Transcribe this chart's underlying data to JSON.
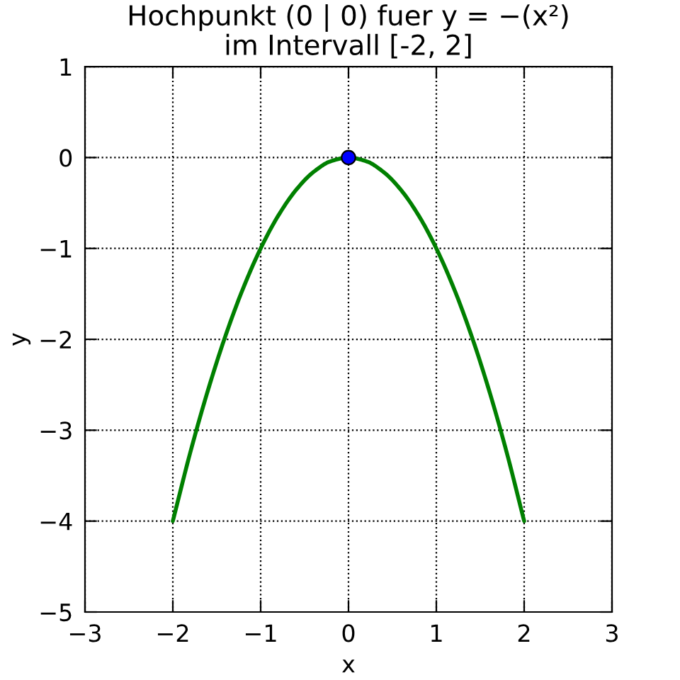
{
  "chart_data": {
    "type": "line",
    "title": "Hochpunkt (0 | 0) fuer y = −(x²)\nim Intervall [-2, 2]",
    "xlabel": "x",
    "ylabel": "y",
    "series": [
      {
        "color": "#008000",
        "x": [
          -2,
          -1.8,
          -1.6,
          -1.4,
          -1.2,
          -1,
          -0.8,
          -0.6,
          -0.4,
          -0.2,
          0,
          0.2,
          0.4,
          0.6,
          0.8,
          1,
          1.2,
          1.4,
          1.6,
          1.8,
          2
        ],
        "values": [
          -4,
          -3.24,
          -2.56,
          -1.96,
          -1.44,
          -1,
          -0.64,
          -0.36,
          -0.16,
          -0.04,
          0,
          -0.04,
          -0.16,
          -0.36,
          -0.64,
          -1,
          -1.44,
          -1.96,
          -2.56,
          -3.24,
          -4
        ],
        "line_style": "solid"
      },
      {
        "type": "scatter",
        "color": "#0000ff",
        "x": [
          0
        ],
        "values": [
          0
        ],
        "marker": "circle"
      }
    ],
    "xlim": [
      -3,
      3
    ],
    "ylim": [
      -5,
      1
    ],
    "xticks": [
      {
        "value": -3,
        "label": "−3"
      },
      {
        "value": -2,
        "label": "−2"
      },
      {
        "value": -1,
        "label": "−1"
      },
      0,
      1,
      2,
      3
    ],
    "yticks": [
      {
        "value": -5,
        "label": "−5"
      },
      {
        "value": -4,
        "label": "−4"
      },
      {
        "value": -3,
        "label": "−3"
      },
      {
        "value": -2,
        "label": "−2"
      },
      {
        "value": -1,
        "label": "−1"
      },
      0,
      1
    ],
    "grid": true
  }
}
